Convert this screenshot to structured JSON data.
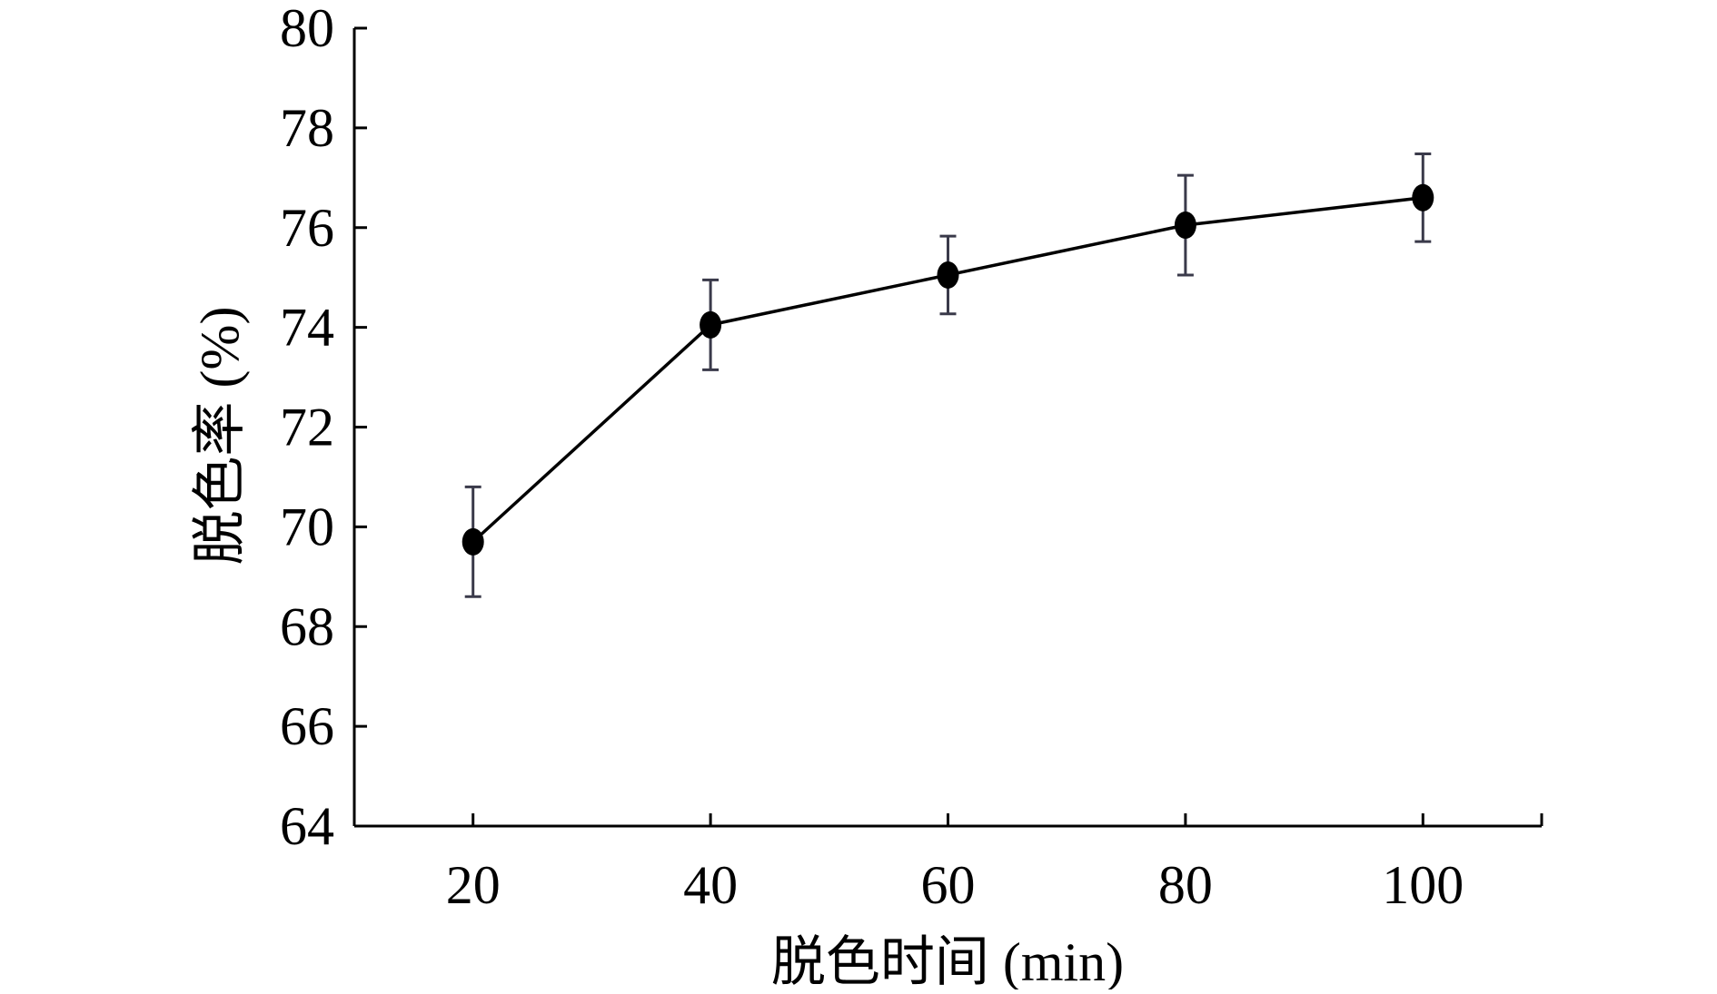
{
  "chart_data": {
    "type": "line",
    "title": "",
    "xlabel": "脱色时间 (min)",
    "ylabel": "脱色率 (%)",
    "x": [
      20,
      40,
      60,
      80,
      100
    ],
    "xticks": [
      "20",
      "40",
      "60",
      "80",
      "100"
    ],
    "yticks": [
      "64",
      "66",
      "68",
      "70",
      "72",
      "74",
      "76",
      "78",
      "80"
    ],
    "xlim": [
      10,
      110
    ],
    "ylim": [
      64,
      80
    ],
    "grid": false,
    "legend": "none",
    "series": [
      {
        "values": [
          69.7,
          74.05,
          75.05,
          76.05,
          76.6
        ],
        "error": [
          1.1,
          0.9,
          0.78,
          1.0,
          0.88
        ],
        "color": "#000000",
        "errorbar_color": "#3a3a4a",
        "marker": "filled-ellipse"
      }
    ]
  }
}
